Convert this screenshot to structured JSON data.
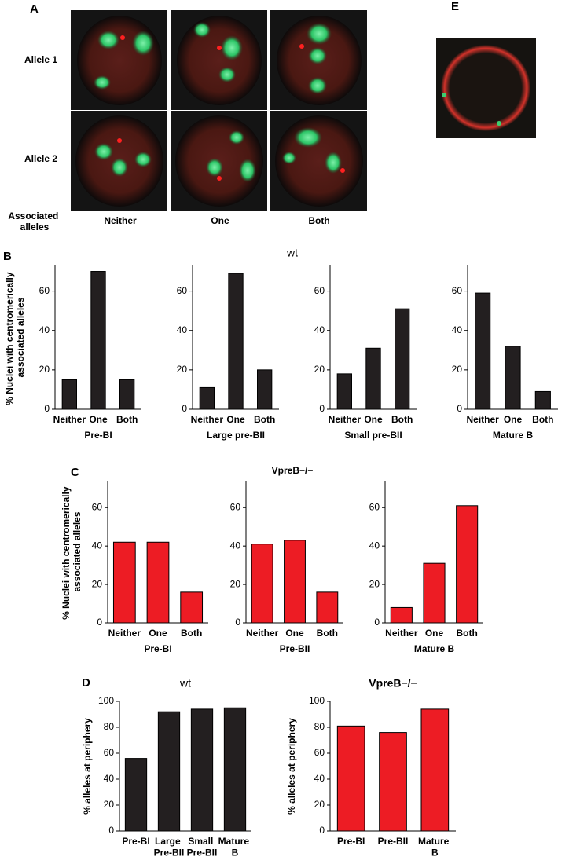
{
  "figure": {
    "panel_labels": [
      "A",
      "B",
      "C",
      "D",
      "E"
    ],
    "panel_a": {
      "row_labels": [
        "Allele 1",
        "Allele 2"
      ],
      "footer_label": "Associated alleles",
      "column_labels": [
        "Neither",
        "One",
        "Both"
      ]
    },
    "panel_b_title": "wt",
    "panel_c_title": "VpreB−/−"
  },
  "chart_data": [
    {
      "type": "bar",
      "y_label": "% Nuclei with centromerically associated alleles",
      "x_label": "Pre-BI",
      "categories": [
        "Neither",
        "One",
        "Both"
      ],
      "values": [
        15,
        70,
        15
      ],
      "color": "#231f20",
      "ylim": [
        0,
        73
      ],
      "yticks": [
        0,
        20,
        40,
        60
      ]
    },
    {
      "type": "bar",
      "x_label": "Large pre-BII",
      "categories": [
        "Neither",
        "One",
        "Both"
      ],
      "values": [
        11,
        69,
        20
      ],
      "color": "#231f20",
      "ylim": [
        0,
        73
      ],
      "yticks": [
        0,
        20,
        40,
        60
      ]
    },
    {
      "type": "bar",
      "x_label": "Small pre-BII",
      "categories": [
        "Neither",
        "One",
        "Both"
      ],
      "values": [
        18,
        31,
        51
      ],
      "color": "#231f20",
      "ylim": [
        0,
        73
      ],
      "yticks": [
        0,
        20,
        40,
        60
      ]
    },
    {
      "type": "bar",
      "x_label": "Mature B",
      "categories": [
        "Neither",
        "One",
        "Both"
      ],
      "values": [
        59,
        32,
        9
      ],
      "color": "#231f20",
      "ylim": [
        0,
        73
      ],
      "yticks": [
        0,
        20,
        40,
        60
      ]
    },
    {
      "type": "bar",
      "y_label": "% Nuclei with centromerically associated alleles",
      "x_label": "Pre-BI",
      "categories": [
        "Neither",
        "One",
        "Both"
      ],
      "values": [
        42,
        42,
        16
      ],
      "color": "#ed1c24",
      "ylim": [
        0,
        74
      ],
      "yticks": [
        0,
        20,
        40,
        60
      ]
    },
    {
      "type": "bar",
      "x_label": "Pre-BII",
      "categories": [
        "Neither",
        "One",
        "Both"
      ],
      "values": [
        41,
        43,
        16
      ],
      "color": "#ed1c24",
      "ylim": [
        0,
        74
      ],
      "yticks": [
        0,
        20,
        40,
        60
      ]
    },
    {
      "type": "bar",
      "x_label": "Mature B",
      "categories": [
        "Neither",
        "One",
        "Both"
      ],
      "values": [
        8,
        31,
        61
      ],
      "color": "#ed1c24",
      "ylim": [
        0,
        74
      ],
      "yticks": [
        0,
        20,
        40,
        60
      ]
    },
    {
      "type": "bar",
      "title": "wt",
      "y_label": "% alleles at periphery",
      "categories": [
        "Pre-BI",
        "Large Pre-BII",
        "Small Pre-BII",
        "Mature B"
      ],
      "values": [
        56,
        92,
        94,
        95
      ],
      "color": "#231f20",
      "ylim": [
        0,
        100
      ],
      "yticks": [
        0,
        20,
        40,
        60,
        80,
        100
      ]
    },
    {
      "type": "bar",
      "title": "VpreB−/−",
      "y_label": "% alleles at periphery",
      "categories": [
        "Pre-BI",
        "Pre-BII",
        "Mature B"
      ],
      "values": [
        81,
        76,
        94
      ],
      "color": "#ed1c24",
      "ylim": [
        0,
        100
      ],
      "yticks": [
        0,
        20,
        40,
        60,
        80,
        100
      ]
    }
  ]
}
